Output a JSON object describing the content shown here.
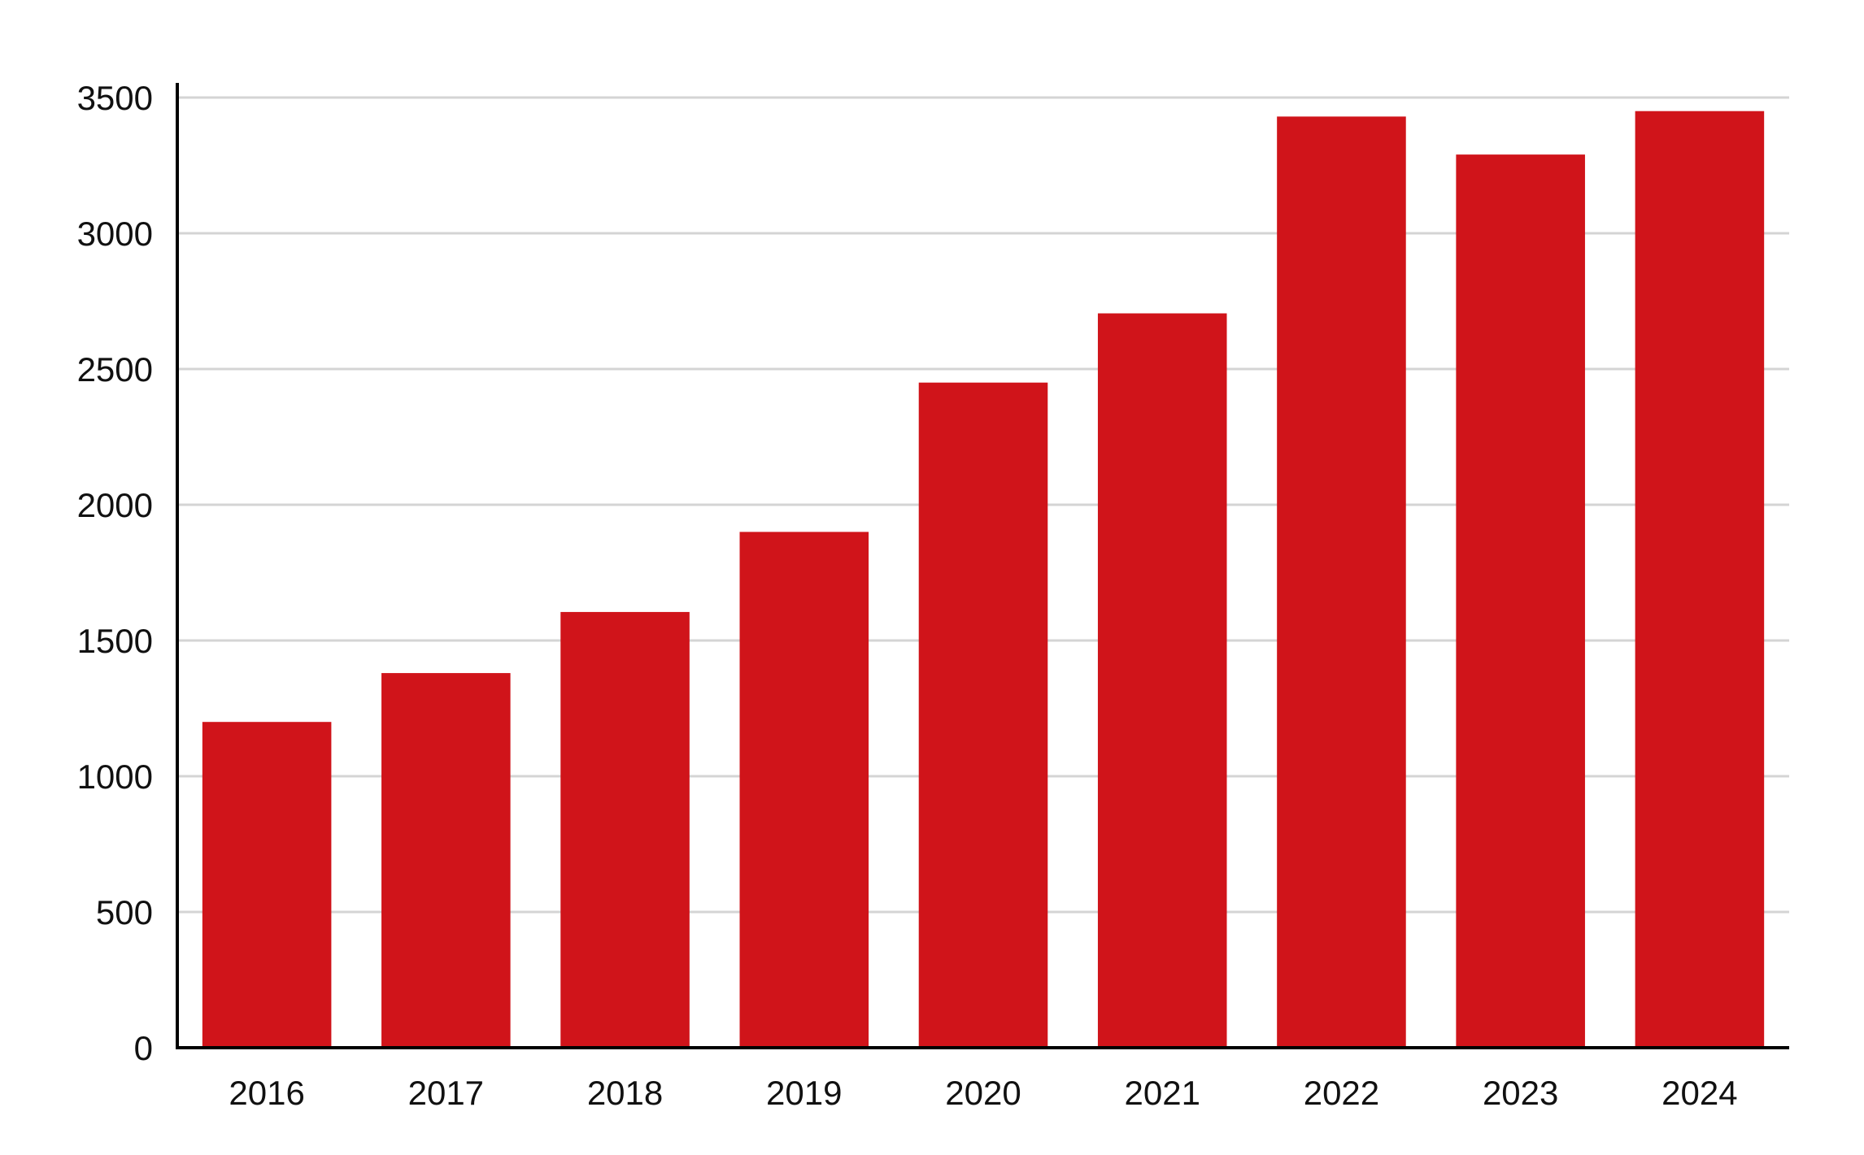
{
  "chart_data": {
    "type": "bar",
    "title": "",
    "xlabel": "",
    "ylabel": "",
    "categories": [
      "2016",
      "2017",
      "2018",
      "2019",
      "2020",
      "2021",
      "2022",
      "2023",
      "2024"
    ],
    "values": [
      1200,
      1380,
      1605,
      1900,
      2450,
      2705,
      3430,
      3290,
      3450
    ],
    "ylim": [
      0,
      3500
    ],
    "yticks": [
      0,
      500,
      1000,
      1500,
      2000,
      2500,
      3000,
      3500
    ],
    "ytick_labels": [
      "0",
      "500",
      "1000",
      "1500",
      "2000",
      "2500",
      "3000",
      "3500"
    ],
    "bar_color": "#d0141a",
    "grid": true,
    "legend": "none"
  }
}
